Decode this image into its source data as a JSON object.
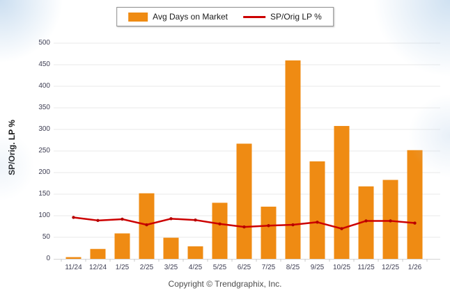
{
  "legend": {
    "bar_label": "Avg Days on Market",
    "line_label": "SP/Orig LP %"
  },
  "footer": {
    "copyright": "Copyright © Trendgraphix, Inc."
  },
  "colors": {
    "bar": "#EF8B13",
    "line": "#CC0000",
    "marker": "#B50000",
    "grid": "#EAEAEA",
    "axis": "#D4D4D4",
    "tick": "#C9C9C9",
    "tick_label": "#3D3D52"
  },
  "chart_data": {
    "type": "bar",
    "title": "",
    "xlabel": "",
    "ylabel": "SP/Orig. LP %",
    "ylim": [
      0,
      500
    ],
    "ytick_step": 50,
    "grid": true,
    "legend_position": "top-center",
    "categories": [
      "11/24",
      "12/24",
      "1/25",
      "2/25",
      "3/25",
      "4/25",
      "5/25",
      "6/25",
      "7/25",
      "8/25",
      "9/25",
      "10/25",
      "11/25",
      "12/25",
      "1/26"
    ],
    "series": [
      {
        "name": "Avg Days on Market",
        "type": "bar",
        "color": "#EF8B13",
        "values": [
          4,
          23,
          59,
          152,
          49,
          29,
          130,
          267,
          121,
          460,
          226,
          308,
          168,
          183,
          252
        ]
      },
      {
        "name": "SP/Orig LP %",
        "type": "line",
        "color": "#CC0000",
        "values": [
          96,
          89,
          92,
          79,
          93,
          90,
          81,
          74,
          77,
          79,
          85,
          70,
          88,
          88,
          83
        ]
      }
    ]
  }
}
